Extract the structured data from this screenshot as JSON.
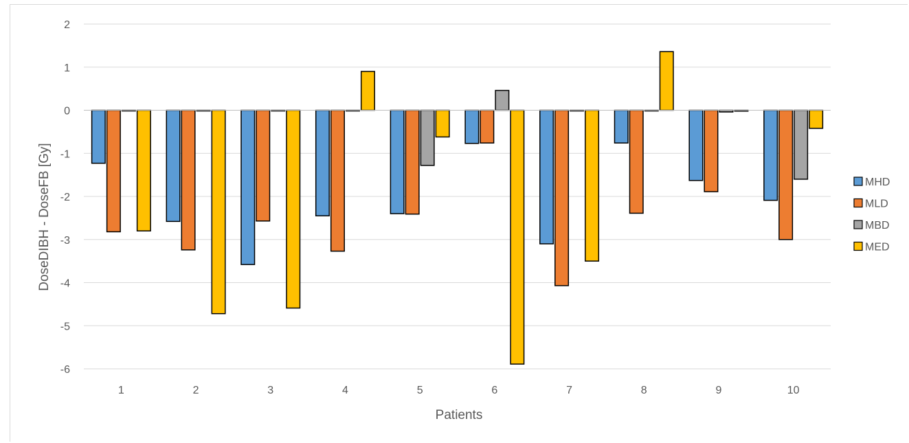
{
  "chart_data": {
    "type": "bar",
    "title": "",
    "xlabel": "Patients",
    "ylabel": "DoseDIBH - DoseFB [Gy]",
    "categories": [
      "1",
      "2",
      "3",
      "4",
      "5",
      "6",
      "7",
      "8",
      "9",
      "10"
    ],
    "ylim": [
      -6,
      2
    ],
    "yticks": [
      2,
      1,
      0,
      -1,
      -2,
      -3,
      -4,
      -5,
      -6
    ],
    "ytick_labels": [
      "2",
      "1",
      "0",
      "-1",
      "-2",
      "-3",
      "-4",
      "-5",
      "-6"
    ],
    "grid": true,
    "legend_position": "right",
    "series": [
      {
        "name": "MHD",
        "color": "#5b9bd5",
        "values": [
          -1.23,
          -2.58,
          -3.58,
          -2.45,
          -2.4,
          -0.77,
          -3.1,
          -0.76,
          -1.63,
          -2.09
        ]
      },
      {
        "name": "MLD",
        "color": "#ed7d31",
        "values": [
          -2.82,
          -3.24,
          -2.57,
          -3.27,
          -2.41,
          -0.76,
          -4.07,
          -2.39,
          -1.89,
          -3.0
        ]
      },
      {
        "name": "MBD",
        "color": "#a5a5a5",
        "values": [
          0,
          0,
          0,
          0,
          -1.28,
          0.46,
          0,
          0,
          -0.04,
          -1.6
        ]
      },
      {
        "name": "MED",
        "color": "#ffc000",
        "values": [
          -2.8,
          -4.72,
          -4.59,
          0.9,
          -0.62,
          -5.89,
          -3.5,
          1.36,
          -0.02,
          -0.42
        ]
      }
    ]
  }
}
